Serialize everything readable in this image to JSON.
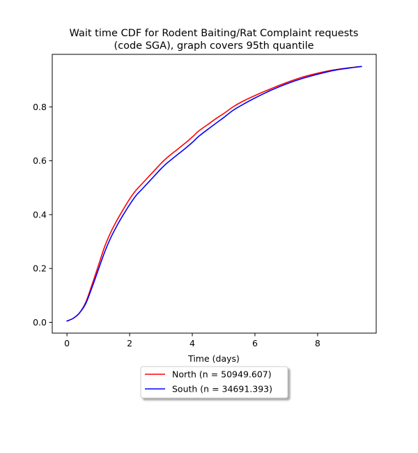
{
  "chart_data": {
    "type": "line",
    "title_line1": "Wait time CDF for Rodent Baiting/Rat Complaint  requests",
    "title_line2": "(code SGA), graph covers 95th quantile",
    "xlabel": "Time (days)",
    "ylabel": "",
    "xlim": [
      -0.47,
      9.87
    ],
    "ylim": [
      -0.04,
      0.995
    ],
    "xticks": [
      0,
      2,
      4,
      6,
      8
    ],
    "xtick_labels": [
      "0",
      "2",
      "4",
      "6",
      "8"
    ],
    "yticks": [
      0.0,
      0.2,
      0.4,
      0.6,
      0.8
    ],
    "ytick_labels": [
      "0.0",
      "0.2",
      "0.4",
      "0.6",
      "0.8"
    ],
    "grid": false,
    "legend_placement": "below",
    "series": [
      {
        "name": "North (n = 50949.607)",
        "color": "#ff0000",
        "x": [
          0,
          0.2,
          0.4,
          0.6,
          0.8,
          1.0,
          1.2,
          1.4,
          1.6,
          1.8,
          2.0,
          2.2,
          2.4,
          2.6,
          2.8,
          3.0,
          3.2,
          3.5,
          3.8,
          4.0,
          4.2,
          4.5,
          4.8,
          5.0,
          5.3,
          5.6,
          6.0,
          6.5,
          7.0,
          7.5,
          8.0,
          8.5,
          9.0,
          9.4
        ],
        "y": [
          0.005,
          0.015,
          0.035,
          0.075,
          0.14,
          0.21,
          0.28,
          0.335,
          0.38,
          0.42,
          0.458,
          0.49,
          0.515,
          0.54,
          0.565,
          0.59,
          0.612,
          0.64,
          0.668,
          0.688,
          0.71,
          0.735,
          0.76,
          0.775,
          0.8,
          0.82,
          0.842,
          0.867,
          0.89,
          0.91,
          0.925,
          0.937,
          0.945,
          0.95
        ]
      },
      {
        "name": "South (n = 34691.393)",
        "color": "#0000ff",
        "x": [
          0,
          0.2,
          0.4,
          0.6,
          0.8,
          1.0,
          1.2,
          1.4,
          1.6,
          1.8,
          2.0,
          2.2,
          2.4,
          2.6,
          2.8,
          3.0,
          3.2,
          3.5,
          3.8,
          4.0,
          4.2,
          4.5,
          4.8,
          5.0,
          5.3,
          5.6,
          6.0,
          6.5,
          7.0,
          7.5,
          8.0,
          8.5,
          9.0,
          9.4
        ],
        "y": [
          0.005,
          0.015,
          0.035,
          0.07,
          0.13,
          0.195,
          0.26,
          0.315,
          0.36,
          0.4,
          0.437,
          0.47,
          0.495,
          0.52,
          0.545,
          0.57,
          0.592,
          0.62,
          0.648,
          0.668,
          0.69,
          0.717,
          0.743,
          0.76,
          0.787,
          0.808,
          0.833,
          0.861,
          0.885,
          0.905,
          0.921,
          0.935,
          0.944,
          0.95
        ]
      }
    ]
  }
}
